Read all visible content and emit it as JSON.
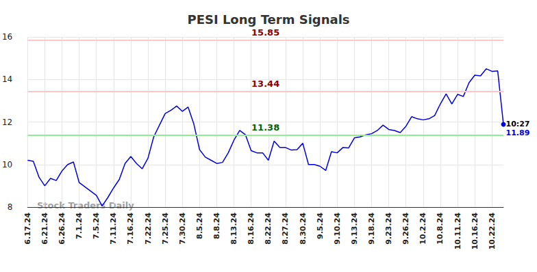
{
  "chart_data": {
    "type": "line",
    "title": "PESI Long Term Signals",
    "categories": [
      "6.17.24",
      null,
      null,
      "6.21.24",
      null,
      null,
      "6.26.24",
      null,
      null,
      "7.1.24",
      null,
      null,
      "7.5.24",
      null,
      null,
      "7.11.24",
      null,
      null,
      "7.16.24",
      null,
      null,
      "7.22.24",
      null,
      null,
      "7.25.24",
      null,
      null,
      "7.30.24",
      null,
      null,
      "8.5.24",
      null,
      null,
      "8.8.24",
      null,
      null,
      "8.13.24",
      null,
      null,
      "8.16.24",
      null,
      null,
      "8.22.24",
      null,
      null,
      "8.27.24",
      null,
      null,
      "8.30.24",
      null,
      null,
      "9.5.24",
      null,
      null,
      "9.10.24",
      null,
      null,
      "9.13.24",
      null,
      null,
      "9.18.24",
      null,
      null,
      "9.23.24",
      null,
      null,
      "9.26.24",
      null,
      null,
      "10.2.24",
      null,
      null,
      "10.8.24",
      null,
      null,
      "10.11.24",
      null,
      null,
      "10.16.24",
      null,
      null,
      "10.22.24",
      null,
      null
    ],
    "values": [
      10.2,
      10.15,
      9.4,
      9.0,
      9.35,
      9.25,
      9.7,
      10.0,
      10.12,
      9.15,
      8.95,
      8.75,
      8.55,
      8.05,
      8.45,
      8.9,
      9.3,
      10.05,
      10.38,
      10.05,
      9.8,
      10.3,
      11.3,
      11.85,
      12.4,
      12.55,
      12.75,
      12.5,
      12.7,
      11.9,
      10.7,
      10.35,
      10.2,
      10.05,
      10.1,
      10.55,
      11.15,
      11.6,
      11.4,
      10.65,
      10.55,
      10.55,
      10.2,
      11.1,
      10.8,
      10.8,
      10.68,
      10.7,
      11.0,
      10.0,
      10.0,
      9.92,
      9.72,
      10.6,
      10.55,
      10.8,
      10.78,
      11.25,
      11.3,
      11.4,
      11.45,
      11.6,
      11.85,
      11.65,
      11.6,
      11.5,
      11.8,
      12.25,
      12.15,
      12.1,
      12.15,
      12.3,
      12.85,
      13.32,
      12.85,
      13.3,
      13.2,
      13.85,
      14.2,
      14.17,
      14.5,
      14.38,
      14.4,
      11.89
    ],
    "color": "#0000dd",
    "ylim": [
      8,
      16
    ],
    "yticks": [
      8,
      10,
      12,
      14,
      16
    ],
    "grid": true,
    "levels": [
      {
        "value": 15.85,
        "color": "#8b0000",
        "line_color": "#ffc8c8"
      },
      {
        "value": 13.44,
        "color": "#8b0000",
        "line_color": "#ffc8c8"
      },
      {
        "value": 11.38,
        "color": "#006400",
        "line_color": "#90ee90"
      }
    ],
    "last_point_time": "10:27",
    "watermark": "Stock Traders Daily"
  }
}
